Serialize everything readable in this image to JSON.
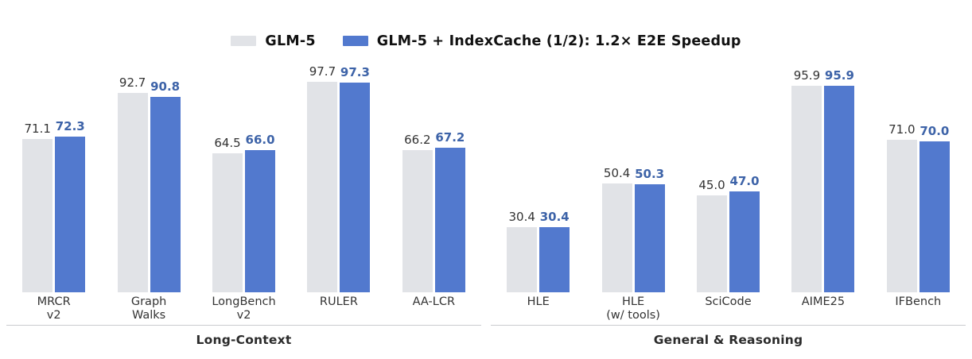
{
  "legend": {
    "entries": [
      {
        "label": "GLM-5",
        "color": "#e1e3e7"
      },
      {
        "label": "GLM-5 + IndexCache (1/2): 1.2× E2E Speedup",
        "color": "#5279ce"
      }
    ]
  },
  "chart_data": {
    "type": "bar",
    "title": "",
    "ylim": [
      0,
      100
    ],
    "grid": false,
    "legend_position": "top-center",
    "series_names": [
      "GLM-5",
      "GLM-5 + IndexCache (1/2): 1.2× E2E Speedup"
    ],
    "colors": {
      "base_bar": "#e1e3e7",
      "accent_bar": "#5279ce",
      "base_label": "#333333",
      "accent_label": "#3d63a8",
      "axis_line": "#c9cbce"
    },
    "panels": [
      {
        "group_label": "Long-Context",
        "categories": [
          [
            "MRCR",
            "v2"
          ],
          [
            "Graph",
            "Walks"
          ],
          [
            "LongBench",
            "v2"
          ],
          [
            "RULER"
          ],
          [
            "AA-LCR"
          ]
        ],
        "series": [
          {
            "name": "GLM-5",
            "values": [
              71.1,
              92.7,
              64.5,
              97.7,
              66.2
            ]
          },
          {
            "name": "GLM-5 + IndexCache (1/2): 1.2× E2E Speedup",
            "values": [
              72.3,
              90.8,
              66.0,
              97.3,
              67.2
            ]
          }
        ]
      },
      {
        "group_label": "General & Reasoning",
        "categories": [
          [
            "HLE"
          ],
          [
            "HLE",
            "(w/ tools)"
          ],
          [
            "SciCode"
          ],
          [
            "AIME25"
          ],
          [
            "IFBench"
          ]
        ],
        "series": [
          {
            "name": "GLM-5",
            "values": [
              30.4,
              50.4,
              45.0,
              95.9,
              71.0
            ]
          },
          {
            "name": "GLM-5 + IndexCache (1/2): 1.2× E2E Speedup",
            "values": [
              30.4,
              50.3,
              47.0,
              95.9,
              70.0
            ]
          }
        ]
      }
    ]
  }
}
